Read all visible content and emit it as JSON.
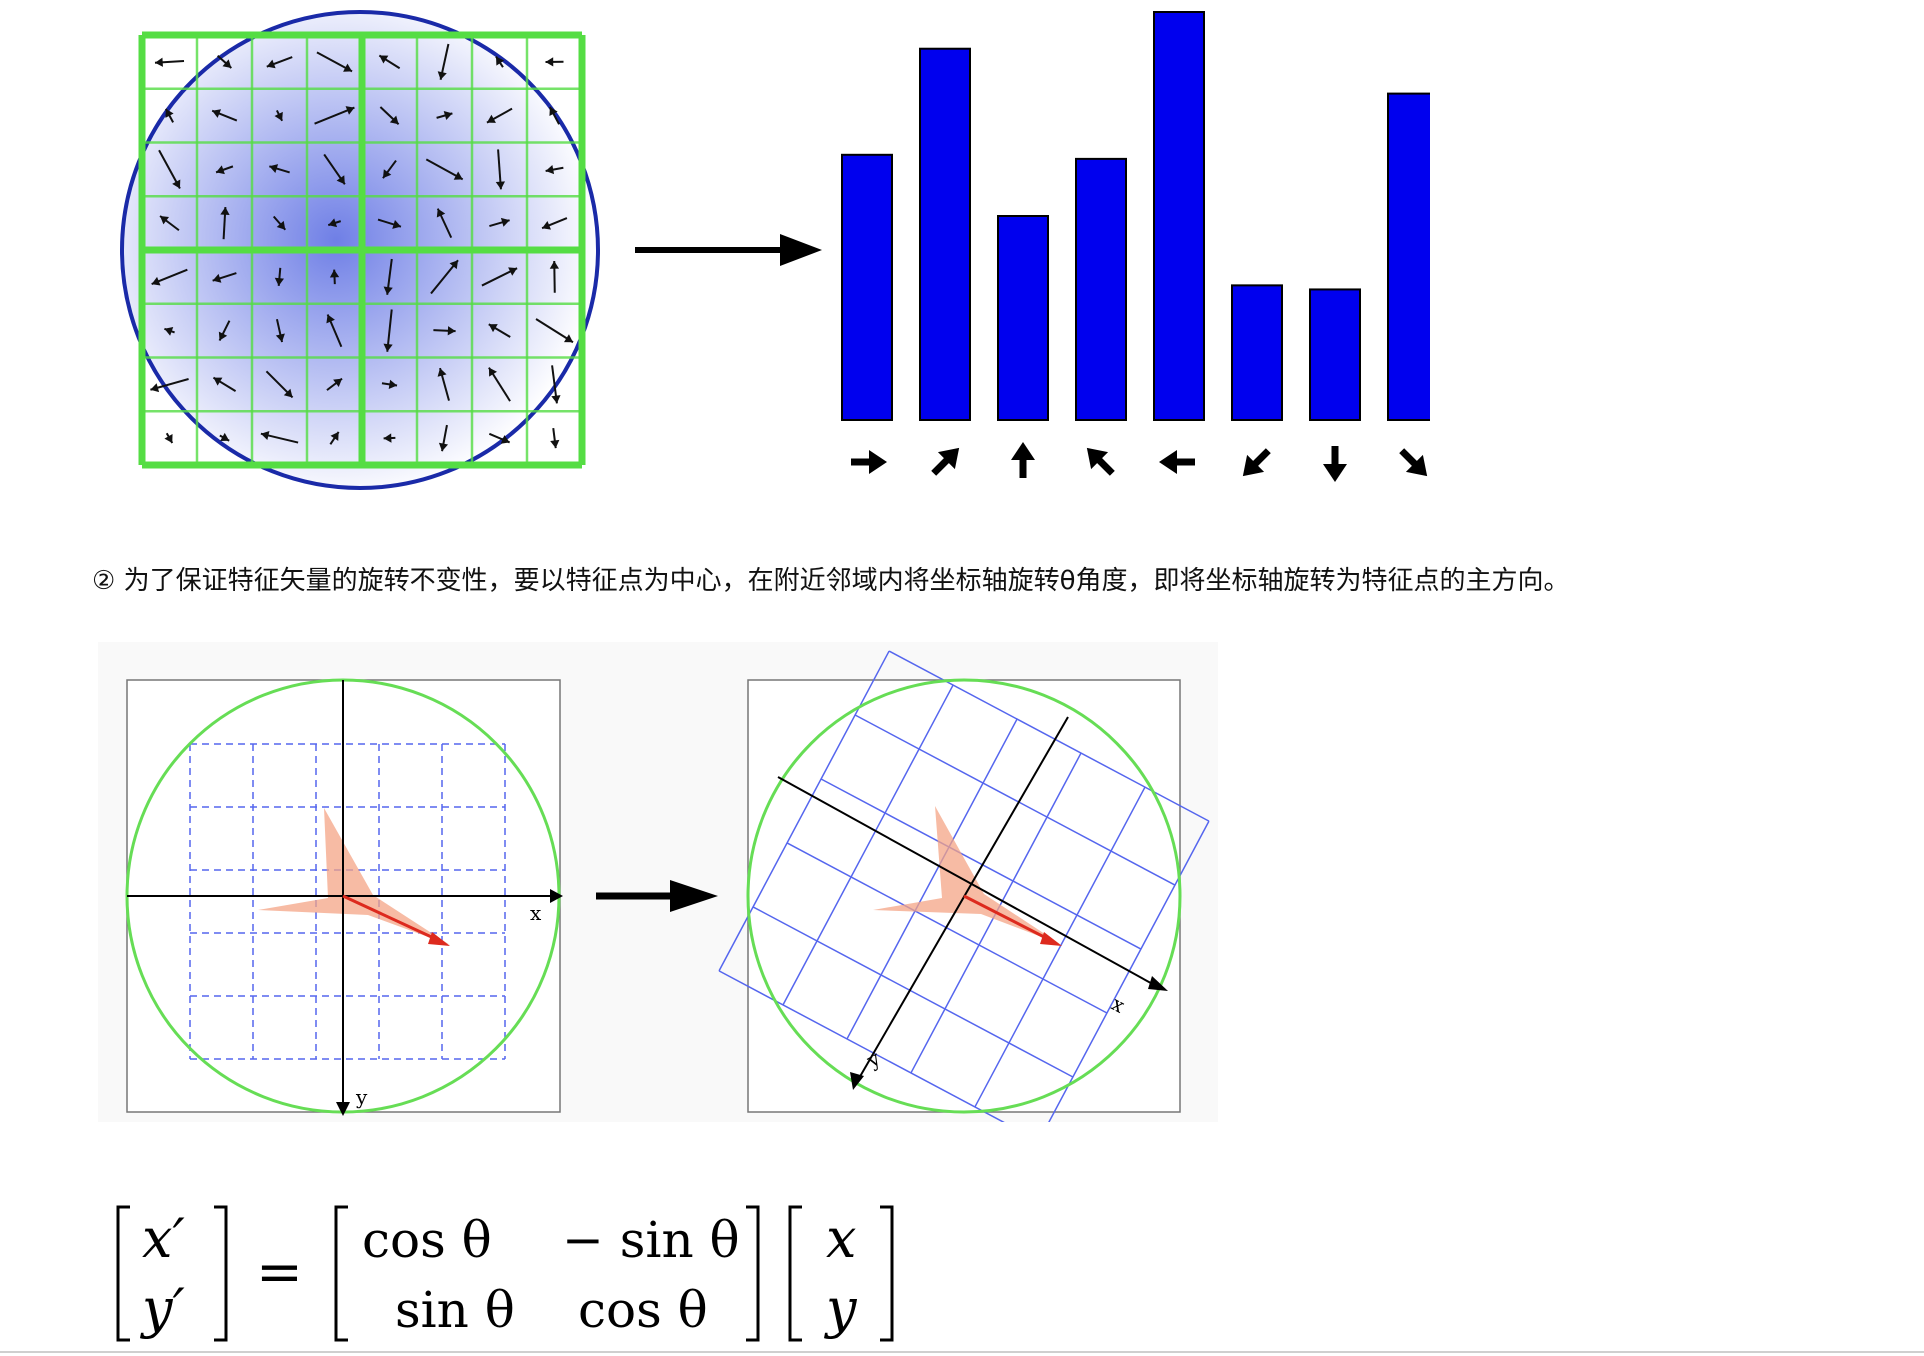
{
  "figure1": {
    "histogram": {
      "values": [
        0.65,
        0.91,
        0.5,
        0.64,
        1.0,
        0.33,
        0.32,
        0.8
      ],
      "direction_icons": [
        "arrow-right-icon",
        "arrow-up-right-icon",
        "arrow-up-icon",
        "arrow-up-left-icon",
        "arrow-left-icon",
        "arrow-down-left-icon",
        "arrow-down-icon",
        "arrow-down-right-icon"
      ],
      "bar_color": "#0000ee"
    },
    "grid_color": "#55dd44",
    "circle_color": "#1a2aa8"
  },
  "paragraph": {
    "marker": "②",
    "text": " 为了保证特征矢量的旋转不变性，要以特征点为中心，在附近邻域内将坐标轴旋转θ角度，即将坐标轴旋转为特征点的主方向。"
  },
  "figure2": {
    "left_panel": {
      "x_label": "x",
      "y_label": "y"
    },
    "right_panel": {
      "x_label": "x",
      "y_label": "y"
    },
    "circle_color": "#66dd55",
    "grid_color": "#5566ee",
    "vector_color": "#dd2a1e",
    "region_color": "#f4a486"
  },
  "formula": {
    "lhs_top": "x′",
    "lhs_bottom": "y′",
    "equals": "=",
    "m11": "cos θ",
    "m12": "− sin θ",
    "m21": "sin θ",
    "m22": "cos θ",
    "rhs_top": "x",
    "rhs_bottom": "y"
  }
}
